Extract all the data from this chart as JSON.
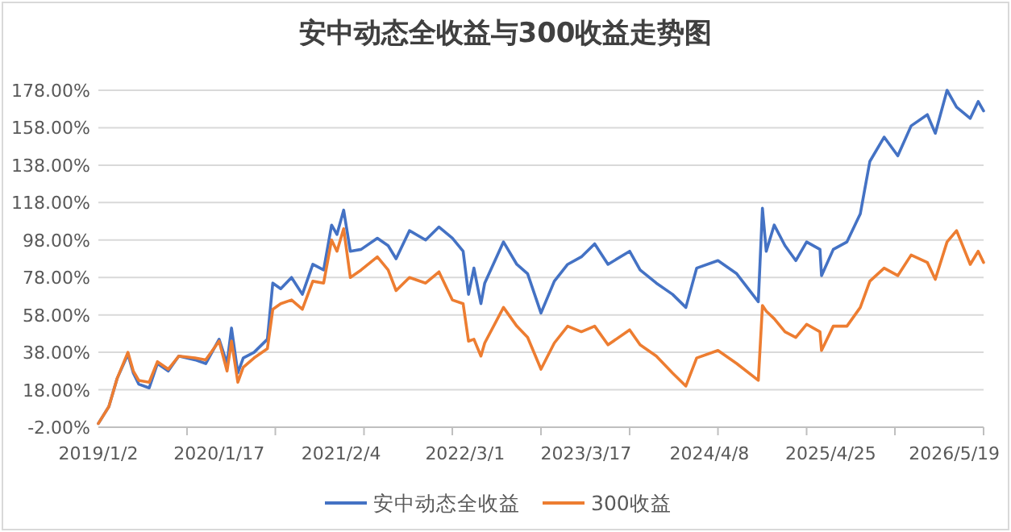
{
  "chart_data": {
    "type": "line",
    "title": "安中动态全收益与300收益走势图",
    "x": [
      "2019-01-02",
      "2019-02-04",
      "2019-03-02",
      "2019-04-05",
      "2019-04-22",
      "2019-05-09",
      "2019-06-11",
      "2019-07-07",
      "2019-08-10",
      "2019-09-12",
      "2019-11-02",
      "2019-12-06",
      "2020-01-17",
      "2020-02-11",
      "2020-02-25",
      "2020-03-16",
      "2020-04-02",
      "2020-05-06",
      "2020-06-17",
      "2020-07-04",
      "2020-07-29",
      "2020-09-01",
      "2020-10-05",
      "2020-11-07",
      "2020-12-11",
      "2021-01-05",
      "2021-01-22",
      "2021-02-12",
      "2021-03-05",
      "2021-04-08",
      "2021-05-29",
      "2021-07-02",
      "2021-07-27",
      "2021-09-07",
      "2021-10-28",
      "2021-12-09",
      "2022-01-20",
      "2022-02-23",
      "2022-03-12",
      "2022-03-29",
      "2022-04-20",
      "2022-05-02",
      "2022-06-30",
      "2022-08-11",
      "2022-09-14",
      "2022-10-26",
      "2022-12-07",
      "2023-01-18",
      "2023-03-02",
      "2023-04-13",
      "2023-05-25",
      "2023-08-01",
      "2023-09-03",
      "2023-10-24",
      "2023-12-14",
      "2024-01-25",
      "2024-02-28",
      "2024-05-05",
      "2024-07-03",
      "2024-09-09",
      "2024-09-22",
      "2024-10-04",
      "2024-10-29",
      "2024-12-02",
      "2025-01-05",
      "2025-02-08",
      "2025-03-22",
      "2025-03-27",
      "2025-05-03",
      "2025-06-15",
      "2025-07-27",
      "2025-08-26",
      "2025-10-10",
      "2025-11-22",
      "2026-01-03",
      "2026-02-23",
      "2026-03-20",
      "2026-04-26",
      "2026-05-26",
      "2026-07-08",
      "2026-08-02",
      "2026-08-19"
    ],
    "series": [
      {
        "name": "安中动态全收益",
        "color": "#4472c4",
        "values": [
          0,
          9,
          24,
          37,
          27,
          21,
          19,
          32,
          28,
          36,
          34,
          32,
          45,
          32,
          51,
          27,
          35,
          38,
          45,
          75,
          72,
          78,
          69,
          85,
          82,
          106,
          101,
          114,
          92,
          93,
          99,
          95,
          88,
          103,
          98,
          105,
          99,
          92,
          69,
          83,
          64,
          75,
          97,
          85,
          80,
          59,
          76,
          85,
          89,
          96,
          85,
          92,
          82,
          75,
          69,
          62,
          83,
          87,
          80,
          65,
          115,
          92,
          106,
          95,
          87,
          97,
          93,
          79,
          93,
          97,
          112,
          140,
          153,
          143,
          159,
          165,
          155,
          178,
          169,
          163,
          172,
          167
        ]
      },
      {
        "name": "300收益",
        "color": "#ed7d31",
        "values": [
          0,
          9,
          24,
          38,
          28,
          23,
          22,
          33,
          29,
          36,
          35,
          34,
          44,
          28,
          44,
          22,
          30,
          35,
          40,
          61,
          64,
          66,
          61,
          76,
          75,
          98,
          92,
          104,
          78,
          82,
          89,
          82,
          71,
          78,
          75,
          81,
          66,
          64,
          44,
          45,
          36,
          43,
          62,
          52,
          46,
          29,
          43,
          52,
          49,
          52,
          42,
          50,
          42,
          36,
          27,
          20,
          35,
          39,
          32,
          23,
          63,
          60,
          56,
          49,
          46,
          53,
          49,
          39,
          52,
          52,
          62,
          76,
          83,
          79,
          90,
          86,
          77,
          97,
          103,
          85,
          92,
          86
        ]
      }
    ],
    "xlim": [
      "2019-01-02",
      "2026-08-19"
    ],
    "xticks": [
      {
        "value": "2019-01-02",
        "label": "2019/1/2"
      },
      {
        "value": "2019-10-08",
        "label": null
      },
      {
        "value": "2020-01-17",
        "label": "2020/1/17"
      },
      {
        "value": "2020-07-12",
        "label": null
      },
      {
        "value": "2021-02-04",
        "label": "2021/2/4"
      },
      {
        "value": "2021-04-17",
        "label": null
      },
      {
        "value": "2022-01-20",
        "label": null
      },
      {
        "value": "2022-03-01",
        "label": "2022/3/1"
      },
      {
        "value": "2022-10-26",
        "label": null
      },
      {
        "value": "2023-03-17",
        "label": "2023/3/17"
      },
      {
        "value": "2023-08-01",
        "label": null
      },
      {
        "value": "2024-04-08",
        "label": "2024/4/8"
      },
      {
        "value": "2024-05-05",
        "label": null
      },
      {
        "value": "2025-02-08",
        "label": null
      },
      {
        "value": "2025-04-25",
        "label": "2025/4/25"
      },
      {
        "value": "2025-11-13",
        "label": null
      },
      {
        "value": "2026-05-19",
        "label": "2026/5/19"
      },
      {
        "value": "2026-08-19",
        "label": null
      }
    ],
    "ylim": [
      -2,
      178
    ],
    "yticks": [
      {
        "value": -2,
        "label": "-2.00%"
      },
      {
        "value": 18,
        "label": "18.00%"
      },
      {
        "value": 38,
        "label": "38.00%"
      },
      {
        "value": 58,
        "label": "58.00%"
      },
      {
        "value": 78,
        "label": "78.00%"
      },
      {
        "value": 98,
        "label": "98.00%"
      },
      {
        "value": 118,
        "label": "118.00%"
      },
      {
        "value": 138,
        "label": "138.00%"
      },
      {
        "value": 158,
        "label": "158.00%"
      },
      {
        "value": 178,
        "label": "178.00%"
      }
    ],
    "grid": "y",
    "legend": "bottom",
    "line_style": "solid",
    "marker": "none"
  }
}
